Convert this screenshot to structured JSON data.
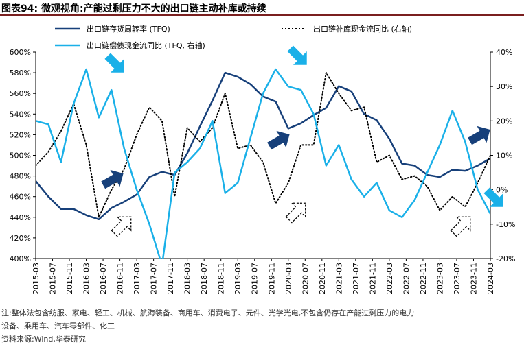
{
  "figure": {
    "label": "图表94:",
    "title": "微观视角:产能过剩压力不大的出口链主动补库或持续"
  },
  "notes": {
    "line1": "注:整体法包含纺服、家电、轻工、机械、航海装备、商用车、消费电子、元件、光学光电,不包含仍存在产能过剩压力的电力",
    "line2": "设备、乘用车、汽车零部件、化工",
    "source": "资料来源:Wind,华泰研究"
  },
  "colors": {
    "turnover": "#17407a",
    "inventory_cf": "#000000",
    "repay_cf": "#1ab0e8",
    "title_rule": "#7a1f1f",
    "axis": "#000000"
  },
  "chart_data": {
    "type": "line",
    "x": [
      "2015-03",
      "2015-05",
      "2015-07",
      "2015-09",
      "2015-11",
      "2016-01",
      "2016-03",
      "2016-05",
      "2016-07",
      "2016-09",
      "2016-11",
      "2017-01",
      "2017-03",
      "2017-05",
      "2017-07",
      "2017-09",
      "2017-11",
      "2018-01",
      "2018-03",
      "2018-05",
      "2018-07",
      "2018-09",
      "2018-11",
      "2019-01",
      "2019-03",
      "2019-05",
      "2019-07",
      "2019-09",
      "2019-11",
      "2020-01",
      "2020-03",
      "2020-05",
      "2020-07",
      "2020-09",
      "2020-11",
      "2021-01",
      "2021-03",
      "2021-05",
      "2021-07",
      "2021-09",
      "2021-11",
      "2022-01",
      "2022-03",
      "2022-05",
      "2022-07",
      "2022-09",
      "2022-11",
      "2023-01",
      "2023-03",
      "2023-05",
      "2023-07",
      "2023-09",
      "2023-11",
      "2024-01",
      "2024-03"
    ],
    "x_tick_labels": [
      "2015-03",
      "2015-07",
      "2015-11",
      "2016-03",
      "2016-07",
      "2016-11",
      "2017-03",
      "2017-07",
      "2017-11",
      "2018-03",
      "2018-07",
      "2018-11",
      "2019-03",
      "2019-07",
      "2019-11",
      "2020-03",
      "2020-07",
      "2020-11",
      "2021-03",
      "2021-07",
      "2021-11",
      "2022-03",
      "2022-07",
      "2022-11",
      "2023-03",
      "2023-07",
      "2023-11",
      "2024-03"
    ],
    "left_axis": {
      "ylim": [
        400,
        600
      ],
      "ticks": [
        "400%",
        "420%",
        "440%",
        "460%",
        "480%",
        "500%",
        "520%",
        "540%",
        "560%",
        "580%",
        "600%"
      ]
    },
    "right_axis": {
      "ylim": [
        -20,
        40
      ],
      "ticks": [
        "-20%",
        "-10%",
        "0%",
        "10%",
        "20%",
        "30%",
        "40%"
      ]
    },
    "legend_position": "top",
    "grid": false,
    "series": [
      {
        "name": "出口链存货周转率 (TFQ)",
        "axis": "left",
        "style": "solid",
        "color_key": "turnover",
        "points": [
          [
            "2015-03",
            475
          ],
          [
            "2015-06",
            460
          ],
          [
            "2015-09",
            448
          ],
          [
            "2015-12",
            448
          ],
          [
            "2016-03",
            442
          ],
          [
            "2016-06",
            438
          ],
          [
            "2016-09",
            449
          ],
          [
            "2016-12",
            455
          ],
          [
            "2017-03",
            462
          ],
          [
            "2017-06",
            479
          ],
          [
            "2017-09",
            484
          ],
          [
            "2017-12",
            481
          ],
          [
            "2018-03",
            502
          ],
          [
            "2018-06",
            528
          ],
          [
            "2018-09",
            553
          ],
          [
            "2018-12",
            580
          ],
          [
            "2019-03",
            576
          ],
          [
            "2019-06",
            569
          ],
          [
            "2019-09",
            557
          ],
          [
            "2019-12",
            552
          ],
          [
            "2020-03",
            526
          ],
          [
            "2020-06",
            531
          ],
          [
            "2020-09",
            539
          ],
          [
            "2020-12",
            546
          ],
          [
            "2021-03",
            567
          ],
          [
            "2021-06",
            562
          ],
          [
            "2021-09",
            540
          ],
          [
            "2021-12",
            534
          ],
          [
            "2022-03",
            516
          ],
          [
            "2022-06",
            492
          ],
          [
            "2022-09",
            490
          ],
          [
            "2022-12",
            481
          ],
          [
            "2023-03",
            479
          ],
          [
            "2023-06",
            486
          ],
          [
            "2023-09",
            485
          ],
          [
            "2023-12",
            490
          ],
          [
            "2024-03",
            497
          ]
        ]
      },
      {
        "name": "出口链补库现金流同比 (右轴)",
        "axis": "right",
        "style": "dotted",
        "color_key": "inventory_cf",
        "points": [
          [
            "2015-03",
            7
          ],
          [
            "2015-06",
            11
          ],
          [
            "2015-09",
            17
          ],
          [
            "2015-12",
            25
          ],
          [
            "2016-03",
            13
          ],
          [
            "2016-06",
            -8
          ],
          [
            "2016-09",
            0
          ],
          [
            "2016-12",
            6
          ],
          [
            "2017-03",
            16
          ],
          [
            "2017-06",
            24
          ],
          [
            "2017-09",
            20
          ],
          [
            "2017-12",
            -2
          ],
          [
            "2018-03",
            18
          ],
          [
            "2018-06",
            14
          ],
          [
            "2018-09",
            18
          ],
          [
            "2018-12",
            28
          ],
          [
            "2019-03",
            12
          ],
          [
            "2019-06",
            13
          ],
          [
            "2019-09",
            8
          ],
          [
            "2019-12",
            -4
          ],
          [
            "2020-03",
            2
          ],
          [
            "2020-06",
            13
          ],
          [
            "2020-09",
            13
          ],
          [
            "2020-12",
            34
          ],
          [
            "2021-03",
            28
          ],
          [
            "2021-06",
            23
          ],
          [
            "2021-09",
            24
          ],
          [
            "2021-12",
            8
          ],
          [
            "2022-03",
            10
          ],
          [
            "2022-06",
            3
          ],
          [
            "2022-09",
            4
          ],
          [
            "2022-12",
            1
          ],
          [
            "2023-03",
            -6
          ],
          [
            "2023-06",
            -2
          ],
          [
            "2023-09",
            -5
          ],
          [
            "2023-12",
            2
          ],
          [
            "2024-03",
            10
          ]
        ]
      },
      {
        "name": "出口链偿债现金流同比 (TFQ, 右轴)",
        "axis": "right",
        "style": "solid",
        "color_key": "repay_cf",
        "points": [
          [
            "2015-03",
            20
          ],
          [
            "2015-06",
            19
          ],
          [
            "2015-09",
            8
          ],
          [
            "2015-12",
            25
          ],
          [
            "2016-03",
            35
          ],
          [
            "2016-06",
            21
          ],
          [
            "2016-09",
            29
          ],
          [
            "2016-12",
            12
          ],
          [
            "2017-03",
            0
          ],
          [
            "2017-06",
            -10
          ],
          [
            "2017-09",
            -22
          ],
          [
            "2017-12",
            5
          ],
          [
            "2018-03",
            8
          ],
          [
            "2018-06",
            12
          ],
          [
            "2018-09",
            20
          ],
          [
            "2018-12",
            -1
          ],
          [
            "2019-03",
            2
          ],
          [
            "2019-06",
            15
          ],
          [
            "2019-09",
            28
          ],
          [
            "2019-12",
            35
          ],
          [
            "2020-03",
            30
          ],
          [
            "2020-06",
            29
          ],
          [
            "2020-09",
            22
          ],
          [
            "2020-12",
            7
          ],
          [
            "2021-03",
            13
          ],
          [
            "2021-06",
            3
          ],
          [
            "2021-09",
            -2
          ],
          [
            "2021-12",
            2
          ],
          [
            "2022-03",
            -6
          ],
          [
            "2022-06",
            -8
          ],
          [
            "2022-09",
            -3
          ],
          [
            "2022-12",
            5
          ],
          [
            "2023-03",
            13
          ],
          [
            "2023-06",
            23
          ],
          [
            "2023-09",
            14
          ],
          [
            "2023-12",
            0
          ],
          [
            "2024-03",
            -7
          ]
        ]
      }
    ]
  }
}
